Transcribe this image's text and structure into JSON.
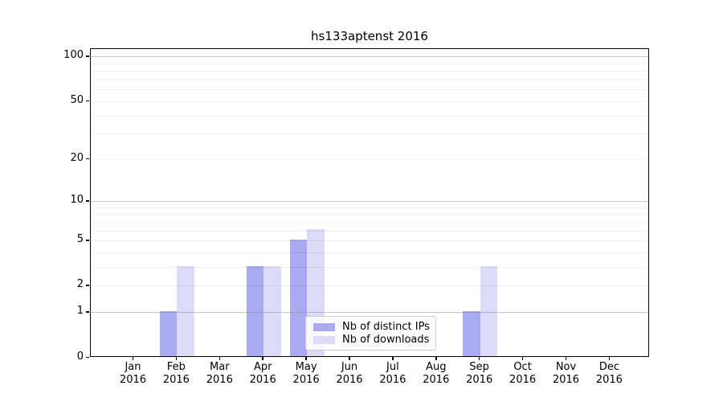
{
  "page": {
    "background": "#ffffff"
  },
  "chart_data": {
    "type": "bar",
    "title": "hs133aptenst 2016",
    "x_categories": [
      {
        "month": "Jan",
        "year": "2016"
      },
      {
        "month": "Feb",
        "year": "2016"
      },
      {
        "month": "Mar",
        "year": "2016"
      },
      {
        "month": "Apr",
        "year": "2016"
      },
      {
        "month": "May",
        "year": "2016"
      },
      {
        "month": "Jun",
        "year": "2016"
      },
      {
        "month": "Jul",
        "year": "2016"
      },
      {
        "month": "Aug",
        "year": "2016"
      },
      {
        "month": "Sep",
        "year": "2016"
      },
      {
        "month": "Oct",
        "year": "2016"
      },
      {
        "month": "Nov",
        "year": "2016"
      },
      {
        "month": "Dec",
        "year": "2016"
      }
    ],
    "series": [
      {
        "name": "Nb of distinct IPs",
        "color": "#a9aaf2",
        "values": [
          0,
          1,
          0,
          3,
          5,
          0,
          0,
          0,
          1,
          0,
          0,
          0
        ]
      },
      {
        "name": "Nb of downloads",
        "color": "#dcdcf8",
        "values": [
          0,
          3,
          0,
          3,
          6,
          0,
          0,
          0,
          3,
          0,
          0,
          0
        ]
      }
    ],
    "y_axis": {
      "scale": "log10(1+y)",
      "ticks": [
        0,
        1,
        2,
        5,
        10,
        20,
        50,
        100
      ],
      "limit_top": 113,
      "major_gridlines": [
        1,
        10,
        100
      ],
      "minor_gridlines": [
        2,
        3,
        4,
        5,
        6,
        7,
        8,
        9,
        20,
        30,
        40,
        50,
        60,
        70,
        80,
        90
      ]
    },
    "legend": {
      "position": "lower center"
    }
  }
}
